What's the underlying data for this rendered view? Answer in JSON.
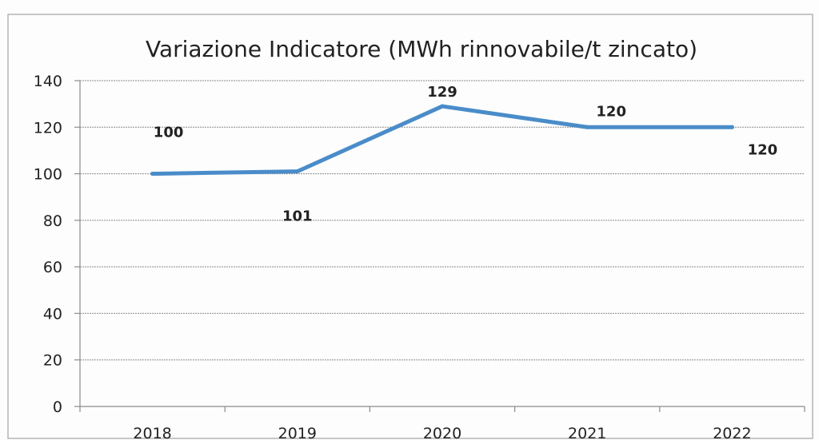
{
  "chart_data": {
    "type": "line",
    "title": "Variazione Indicatore (MWh rinnovabile/t zincato)",
    "xlabel": "",
    "ylabel": "",
    "categories": [
      "2018",
      "2019",
      "2020",
      "2021",
      "2022"
    ],
    "series": [
      {
        "values": [
          100,
          101,
          129,
          120,
          120
        ]
      }
    ],
    "data_labels": [
      "100",
      "101",
      "129",
      "120",
      "120"
    ],
    "ylim": [
      0,
      140
    ],
    "yticks": [
      0,
      20,
      40,
      60,
      80,
      100,
      120,
      140
    ],
    "grid": true,
    "legend": "none",
    "colors": {
      "series": "#4a8cc9",
      "grid": "#8c8c8c",
      "text": "#222222"
    }
  }
}
